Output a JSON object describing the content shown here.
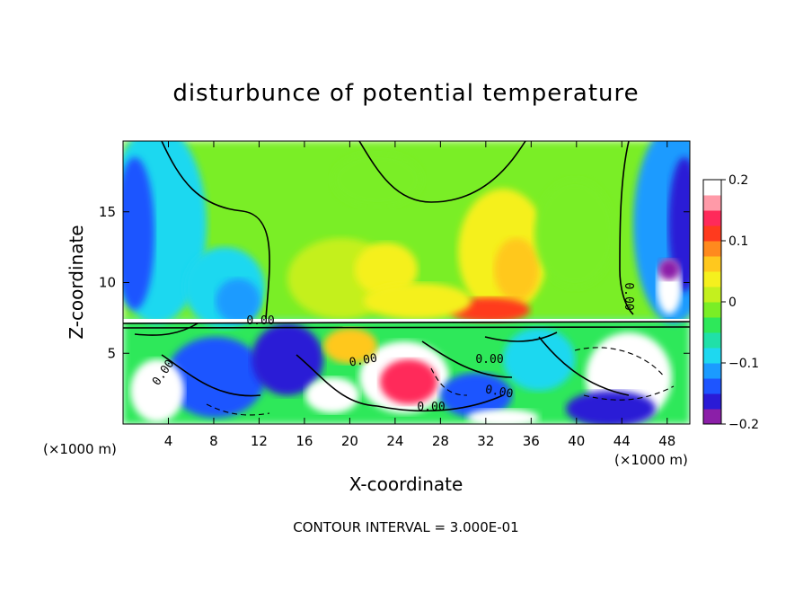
{
  "chart_data": {
    "type": "heatmap",
    "title": "disturbunce of potential temperature",
    "xlabel": "X-coordinate",
    "ylabel": "Z-coordinate",
    "x_unit": "(×1000 m)",
    "x_unit_right": "(×1000 m)",
    "xlim": [
      0,
      50
    ],
    "ylim": [
      0,
      20
    ],
    "x_ticks": [
      4,
      8,
      12,
      16,
      20,
      24,
      28,
      32,
      36,
      40,
      44,
      48
    ],
    "y_ticks": [
      5,
      10,
      15
    ],
    "colorbar": {
      "range": [
        -0.2,
        0.2
      ],
      "tick_values": [
        0.2,
        0.1,
        0,
        -0.1,
        -0.2
      ],
      "tick_labels": [
        "0.2",
        "0.1",
        "0",
        "−0.1",
        "−0.2"
      ],
      "colors": [
        "#8b1fa8",
        "#2a1bd6",
        "#1e55ff",
        "#1b9bff",
        "#1ed8f0",
        "#20e0a8",
        "#2ee85a",
        "#7aee26",
        "#c4f01e",
        "#f5f01e",
        "#ffc81e",
        "#ff8a1e",
        "#ff3a1e",
        "#ff2a5a",
        "#ff9aa8",
        "#ffffff"
      ]
    },
    "contour_labels": [
      "0.00",
      "0.00",
      "0.00",
      "0.00",
      "0.00",
      "0.00",
      "0.00"
    ],
    "contour_interval_text": "CONTOUR INTERVAL = 3.000E-01"
  }
}
